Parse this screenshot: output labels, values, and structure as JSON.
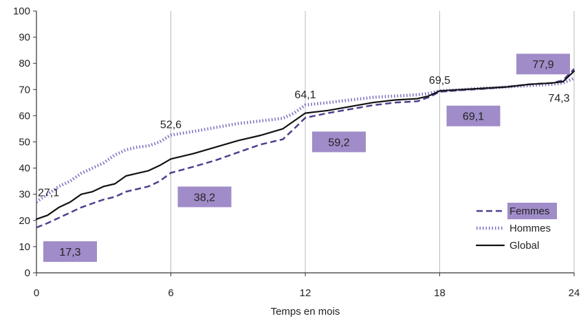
{
  "chart_data": {
    "type": "line",
    "title": "",
    "xlabel": "Temps en mois",
    "ylabel": "",
    "xlim": [
      0,
      24
    ],
    "ylim": [
      0,
      100
    ],
    "x_ticks": [
      "0",
      "6",
      "12",
      "18",
      "24"
    ],
    "y_ticks": [
      "0",
      "10",
      "20",
      "30",
      "40",
      "50",
      "60",
      "70",
      "80",
      "90",
      "100"
    ],
    "vertical_gridlines_at": [
      6,
      12,
      18,
      24
    ],
    "legend_position": "bottom-right",
    "colors": {
      "femmes": "#4b3f8f",
      "hommes": "#7a6fbf",
      "global": "#111111",
      "label_box": "#a08cc8"
    },
    "series": [
      {
        "name": "Femmes",
        "style": "dashed",
        "x": [
          0,
          0.5,
          1,
          1.5,
          2,
          2.5,
          3,
          3.5,
          4,
          4.5,
          5,
          5.5,
          6,
          7,
          8,
          9,
          10,
          11,
          11.5,
          12,
          13,
          14,
          15,
          16,
          17,
          17.5,
          18,
          19,
          20,
          21,
          22,
          23,
          23.5,
          24
        ],
        "y": [
          17.3,
          19,
          21,
          23,
          25,
          26.5,
          28,
          29,
          31,
          32,
          33,
          35,
          38.2,
          40.5,
          43,
          46,
          49,
          51,
          55,
          59.2,
          61,
          62.5,
          64,
          65,
          65.5,
          67,
          69.1,
          69.8,
          70.3,
          71,
          72,
          72.5,
          73.5,
          77.9
        ]
      },
      {
        "name": "Hommes",
        "style": "dotted",
        "x": [
          0,
          0.5,
          1,
          1.5,
          2,
          2.5,
          3,
          3.5,
          4,
          4.5,
          5,
          5.5,
          6,
          7,
          8,
          9,
          10,
          11,
          11.5,
          12,
          13,
          14,
          15,
          16,
          17,
          17.5,
          18,
          19,
          20,
          21,
          22,
          23,
          23.5,
          24
        ],
        "y": [
          27.1,
          30,
          33,
          35,
          38,
          40,
          42,
          45,
          47,
          48,
          48.5,
          50,
          52.6,
          54,
          55.5,
          57,
          58,
          59,
          61,
          64.1,
          65,
          66,
          67,
          67.5,
          68,
          68.5,
          69.5,
          70,
          70.5,
          71,
          71.5,
          72,
          72.5,
          74.3
        ]
      },
      {
        "name": "Global",
        "style": "solid",
        "x": [
          0,
          0.5,
          1,
          1.5,
          2,
          2.5,
          3,
          3.5,
          4,
          4.5,
          5,
          5.5,
          6,
          7,
          8,
          9,
          10,
          11,
          11.5,
          12,
          12.5,
          13,
          14,
          15,
          16,
          17,
          17.5,
          18,
          19,
          20,
          21,
          22,
          23,
          23.5,
          24
        ],
        "y": [
          20.5,
          22,
          25,
          27,
          30,
          31,
          33,
          34,
          37,
          38,
          39,
          41,
          43.5,
          45.5,
          48,
          50.5,
          52.5,
          55,
          58,
          61,
          61.5,
          62,
          63.5,
          65,
          66,
          66.5,
          67.5,
          69.5,
          70,
          70.5,
          71,
          72,
          72.5,
          73,
          77
        ]
      }
    ],
    "annotations": [
      {
        "text": "27,1",
        "x": 0,
        "y": 27.1,
        "series": "Hommes",
        "boxed": false,
        "pos": "above"
      },
      {
        "text": "52,6",
        "x": 6,
        "y": 52.6,
        "series": "Hommes",
        "boxed": false,
        "pos": "above"
      },
      {
        "text": "64,1",
        "x": 12,
        "y": 64.1,
        "series": "Hommes",
        "boxed": false,
        "pos": "above"
      },
      {
        "text": "69,5",
        "x": 18,
        "y": 69.5,
        "series": "Hommes",
        "boxed": false,
        "pos": "above"
      },
      {
        "text": "74,3",
        "x": 24,
        "y": 74.3,
        "series": "Hommes",
        "boxed": false,
        "pos": "left-below"
      },
      {
        "text": "17,3",
        "x": 0,
        "y": 17.3,
        "series": "Femmes",
        "boxed": true,
        "pos": "below"
      },
      {
        "text": "38,2",
        "x": 6,
        "y": 38.2,
        "series": "Femmes",
        "boxed": true,
        "pos": "below"
      },
      {
        "text": "59,2",
        "x": 12,
        "y": 59.2,
        "series": "Femmes",
        "boxed": true,
        "pos": "below"
      },
      {
        "text": "69,1",
        "x": 18,
        "y": 69.1,
        "series": "Femmes",
        "boxed": true,
        "pos": "below"
      },
      {
        "text": "77,9",
        "x": 24,
        "y": 77.9,
        "series": "Femmes",
        "boxed": true,
        "pos": "left-above"
      }
    ]
  }
}
